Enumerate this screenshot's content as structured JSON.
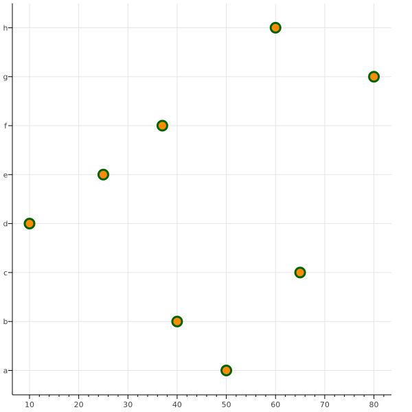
{
  "chart_data": {
    "type": "scatter",
    "title": "",
    "xlabel": "",
    "ylabel": "",
    "xlim": [
      7,
      83.5
    ],
    "x_ticks_major": [
      10,
      20,
      30,
      40,
      50,
      60,
      70,
      80
    ],
    "x_ticks_minor": [
      12,
      14,
      16,
      18,
      22,
      24,
      26,
      28,
      32,
      34,
      36,
      38,
      42,
      44,
      46,
      48,
      52,
      54,
      56,
      58,
      62,
      64,
      66,
      68,
      72,
      74,
      76,
      78,
      82
    ],
    "y_categories": [
      "a",
      "b",
      "c",
      "d",
      "e",
      "f",
      "g",
      "h"
    ],
    "grid": true,
    "legend": false,
    "points": [
      {
        "x": 50,
        "y": "a"
      },
      {
        "x": 40,
        "y": "b"
      },
      {
        "x": 65,
        "y": "c"
      },
      {
        "x": 10,
        "y": "d"
      },
      {
        "x": 25,
        "y": "e"
      },
      {
        "x": 37,
        "y": "f"
      },
      {
        "x": 80,
        "y": "g"
      },
      {
        "x": 60,
        "y": "h"
      }
    ],
    "marker_fill_color": "#ff8c00",
    "marker_line_color": "#006400"
  }
}
